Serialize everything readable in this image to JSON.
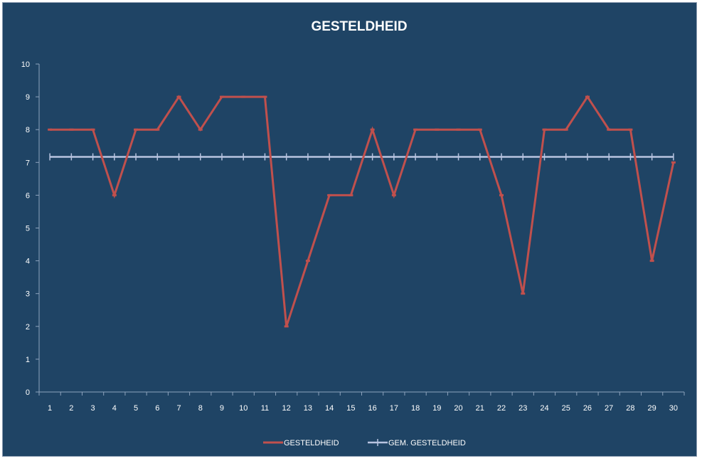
{
  "chart_data": {
    "type": "line",
    "title": "GESTELDHEID",
    "xlabel": "",
    "ylabel": "",
    "ylim": [
      0,
      10
    ],
    "yticks": [
      0,
      1,
      2,
      3,
      4,
      5,
      6,
      7,
      8,
      9,
      10
    ],
    "categories": [
      "1",
      "2",
      "3",
      "4",
      "5",
      "6",
      "7",
      "8",
      "9",
      "10",
      "11",
      "12",
      "13",
      "14",
      "15",
      "16",
      "17",
      "18",
      "19",
      "20",
      "21",
      "22",
      "23",
      "24",
      "25",
      "26",
      "27",
      "28",
      "29",
      "30"
    ],
    "series": [
      {
        "name": "GESTELDHEID",
        "color": "#c0504d",
        "values": [
          8,
          8,
          8,
          6,
          8,
          8,
          9,
          8,
          9,
          9,
          9,
          2,
          4,
          6,
          6,
          8,
          6,
          8,
          8,
          8,
          8,
          6,
          3,
          8,
          8,
          9,
          8,
          8,
          4,
          7
        ]
      },
      {
        "name": "GEM. GESTELDHEID",
        "color": "#b8c4e0",
        "values": [
          7.17,
          7.17,
          7.17,
          7.17,
          7.17,
          7.17,
          7.17,
          7.17,
          7.17,
          7.17,
          7.17,
          7.17,
          7.17,
          7.17,
          7.17,
          7.17,
          7.17,
          7.17,
          7.17,
          7.17,
          7.17,
          7.17,
          7.17,
          7.17,
          7.17,
          7.17,
          7.17,
          7.17,
          7.17,
          7.17
        ]
      }
    ],
    "grid": false,
    "legend": "bottom"
  }
}
